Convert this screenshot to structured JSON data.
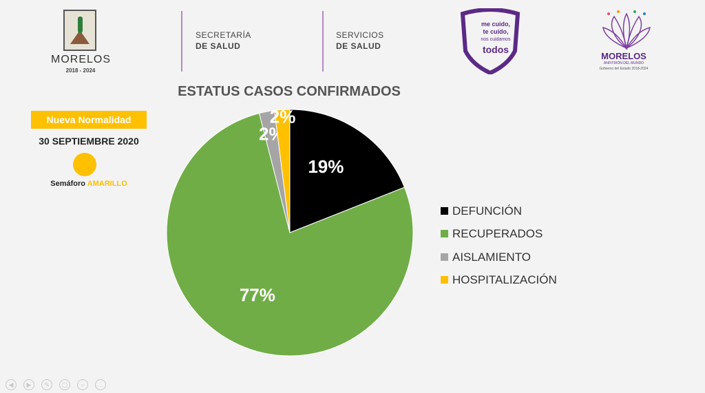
{
  "header": {
    "left_logo_name": "MORELOS",
    "left_logo_years": "2018 - 2024",
    "dept1_line1": "SECRETARÍA",
    "dept1_line2": "DE SALUD",
    "dept2_line1": "SERVICIOS",
    "dept2_line2": "DE SALUD",
    "campaign_line1": "me cuido,",
    "campaign_line2": "te cuido,",
    "campaign_line3": "nos cuidamos",
    "campaign_line4": "todos",
    "right_logo_name": "MORELOS",
    "right_logo_sub": "ANFITRIÓN DEL MUNDO",
    "right_logo_gov": "Gobierno del Estado 2018-2024"
  },
  "info": {
    "badge": "Nueva Normalidad",
    "date": "30 SEPTIEMBRE 2020",
    "semaforo_label": "Semáforo",
    "semaforo_value": "AMARILLO",
    "semaforo_color": "#ffc000"
  },
  "chart_data": {
    "type": "pie",
    "title": "ESTATUS CASOS CONFIRMADOS",
    "start_angle_deg": 0,
    "direction": "clockwise",
    "legend_position": "right",
    "slices": [
      {
        "label": "DEFUNCIÓN",
        "value": 19,
        "data_label": "19%",
        "color": "#000000"
      },
      {
        "label": "RECUPERADOS",
        "value": 77,
        "data_label": "77%",
        "color": "#70ad47"
      },
      {
        "label": "AISLAMIENTO",
        "value": 2,
        "data_label": "2%",
        "color": "#a5a5a5"
      },
      {
        "label": "HOSPITALIZACIÓN",
        "value": 2,
        "data_label": "2%",
        "color": "#ffc000"
      }
    ]
  },
  "footer": {
    "controls": [
      "prev-icon",
      "next-icon",
      "pen-icon",
      "slides-icon",
      "zoom-icon",
      "more-icon"
    ]
  }
}
